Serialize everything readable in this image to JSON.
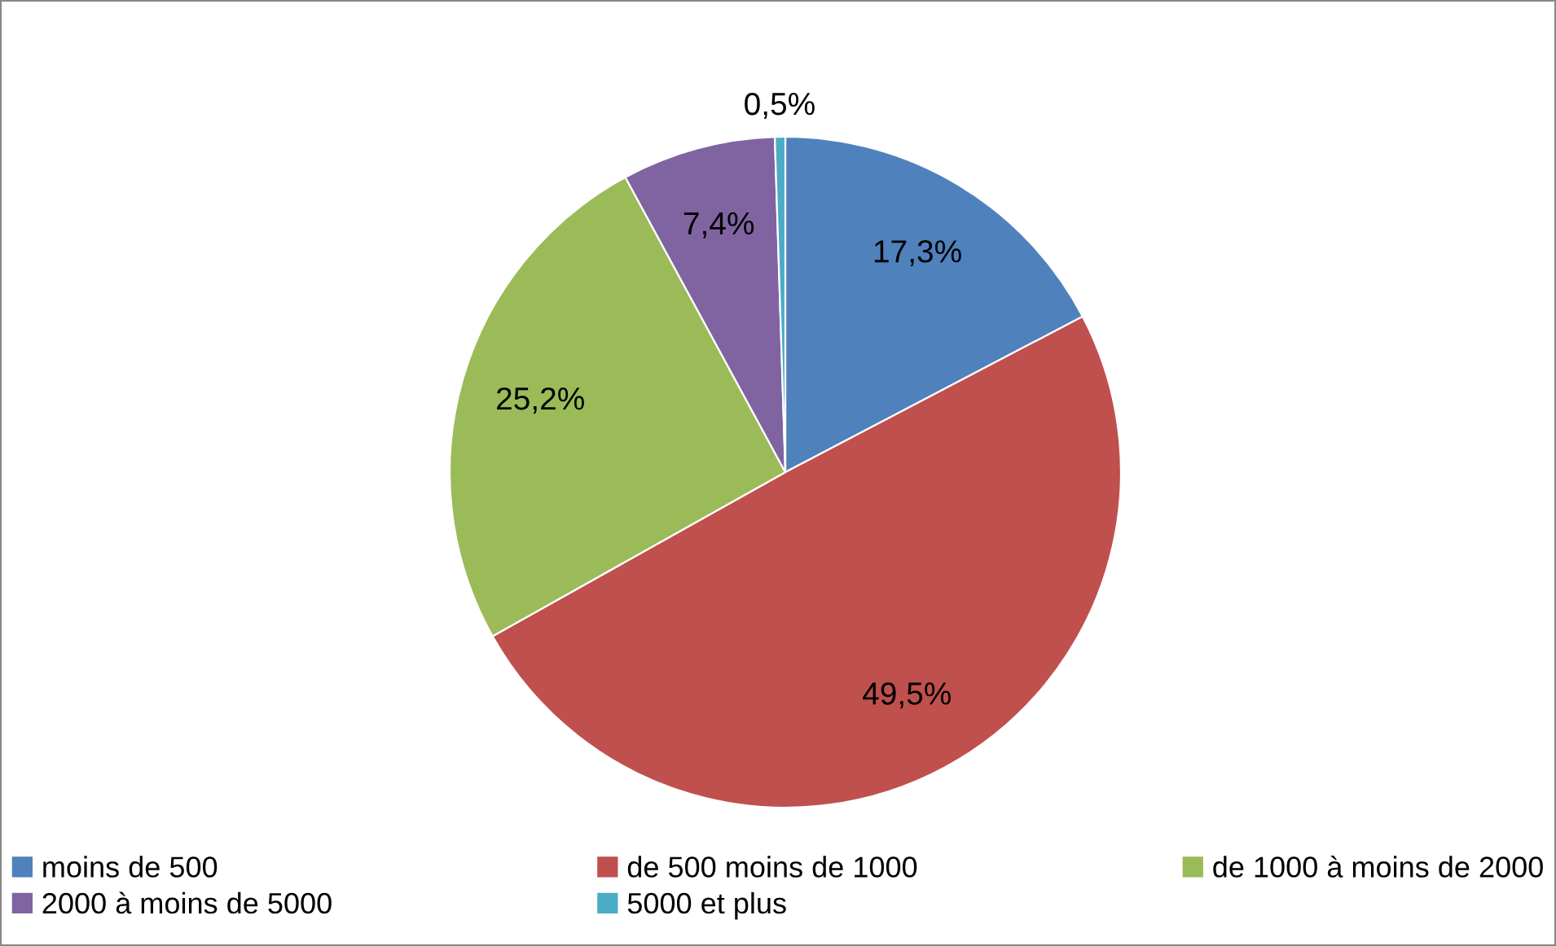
{
  "chart_data": {
    "type": "pie",
    "categories": [
      "moins de 500",
      "de 500 moins de 1000",
      "de 1000 à moins de 2000",
      "2000 à moins de 5000",
      "5000 et plus"
    ],
    "values": [
      17.3,
      49.5,
      25.2,
      7.4,
      0.5
    ],
    "colors": [
      "#4f81bd",
      "#c0504d",
      "#9bbb59",
      "#8064a2",
      "#4bacc6"
    ],
    "value_labels": [
      "17,3%",
      "49,5%",
      "25,2%",
      "7,4%",
      "0,5%"
    ],
    "legend": "bottom"
  }
}
